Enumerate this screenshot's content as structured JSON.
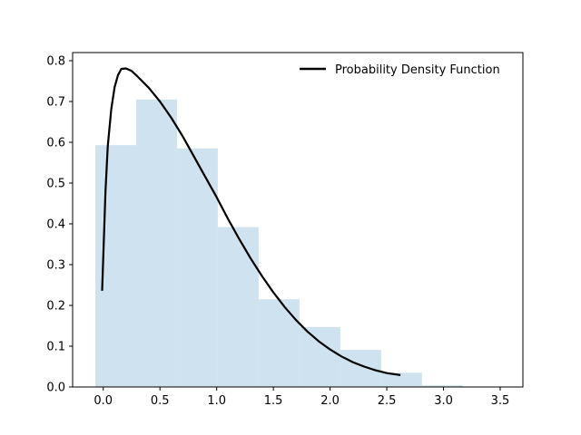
{
  "chart_data": {
    "type": "bar",
    "title": "",
    "xlabel": "",
    "ylabel": "",
    "xlim": [
      -0.27,
      3.7
    ],
    "ylim": [
      0,
      0.82
    ],
    "grid": false,
    "legend_position": "top-right",
    "x_ticks": [
      0.0,
      0.5,
      1.0,
      1.5,
      2.0,
      2.5,
      3.0,
      3.5
    ],
    "x_tick_labels": [
      "0.0",
      "0.5",
      "1.0",
      "1.5",
      "2.0",
      "2.5",
      "3.0",
      "3.5"
    ],
    "y_ticks": [
      0.0,
      0.1,
      0.2,
      0.3,
      0.4,
      0.5,
      0.6,
      0.7,
      0.8
    ],
    "y_tick_labels": [
      "0.0",
      "0.1",
      "0.2",
      "0.3",
      "0.4",
      "0.5",
      "0.6",
      "0.7",
      "0.8"
    ],
    "histogram": {
      "color": "#cfe2ef",
      "bins": [
        {
          "x0": -0.07,
          "x1": 0.29,
          "value": 0.593
        },
        {
          "x0": 0.29,
          "x1": 0.65,
          "value": 0.705
        },
        {
          "x0": 0.65,
          "x1": 1.01,
          "value": 0.585
        },
        {
          "x0": 1.01,
          "x1": 1.37,
          "value": 0.392
        },
        {
          "x0": 1.37,
          "x1": 1.73,
          "value": 0.215
        },
        {
          "x0": 1.73,
          "x1": 2.09,
          "value": 0.147
        },
        {
          "x0": 2.09,
          "x1": 2.45,
          "value": 0.091
        },
        {
          "x0": 2.45,
          "x1": 2.81,
          "value": 0.035
        },
        {
          "x0": 2.81,
          "x1": 3.17,
          "value": 0.004
        },
        {
          "x0": 3.17,
          "x1": 3.53,
          "value": 0.001
        }
      ]
    },
    "series": [
      {
        "name": "Probability Density Function",
        "color": "#000000",
        "type": "line",
        "x": [
          -0.01,
          0.02,
          0.04,
          0.07,
          0.1,
          0.13,
          0.16,
          0.2,
          0.25,
          0.3,
          0.4,
          0.5,
          0.6,
          0.7,
          0.8,
          0.9,
          1.0,
          1.1,
          1.2,
          1.3,
          1.4,
          1.5,
          1.6,
          1.7,
          1.8,
          1.9,
          2.0,
          2.1,
          2.2,
          2.3,
          2.4,
          2.5,
          2.62
        ],
        "y": [
          0.236,
          0.48,
          0.59,
          0.68,
          0.735,
          0.765,
          0.78,
          0.781,
          0.775,
          0.762,
          0.734,
          0.7,
          0.66,
          0.615,
          0.565,
          0.515,
          0.465,
          0.412,
          0.362,
          0.315,
          0.272,
          0.232,
          0.196,
          0.164,
          0.136,
          0.112,
          0.092,
          0.075,
          0.061,
          0.05,
          0.041,
          0.034,
          0.029
        ]
      }
    ]
  }
}
